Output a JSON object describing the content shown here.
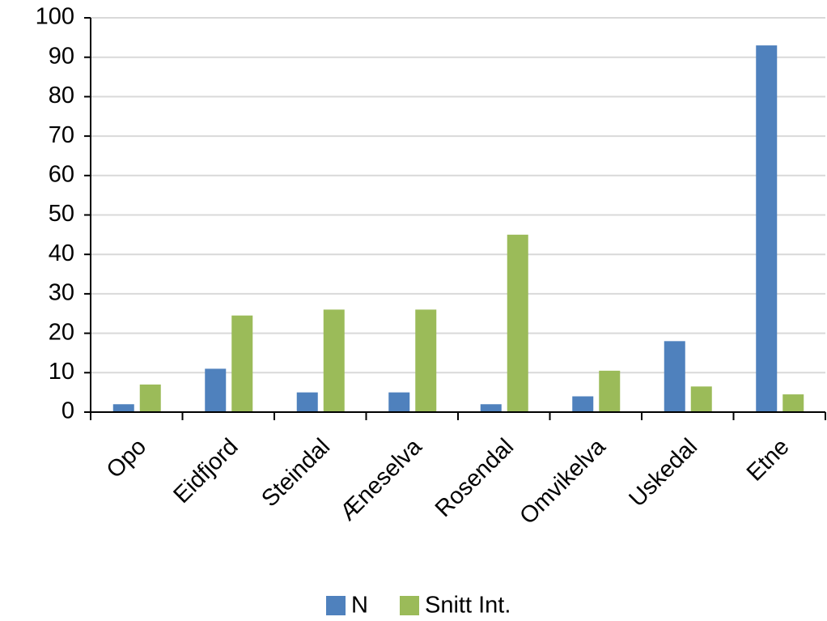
{
  "chart_data": {
    "type": "bar",
    "categories": [
      "Opo",
      "Eidfjord",
      "Steindal",
      "Æneselva",
      "Rosendal",
      "Omvikelva",
      "Uskedal",
      "Etne"
    ],
    "series": [
      {
        "name": "N",
        "color": "#4f81bd",
        "values": [
          2,
          11,
          5,
          5,
          2,
          4,
          18,
          93
        ]
      },
      {
        "name": "Snitt Int.",
        "color": "#9bbb59",
        "values": [
          7,
          24.5,
          26,
          26,
          45,
          10.5,
          6.5,
          4.5
        ]
      }
    ],
    "ylim": [
      0,
      100
    ],
    "yticks": [
      0,
      10,
      20,
      30,
      40,
      50,
      60,
      70,
      80,
      90,
      100
    ],
    "grid": true,
    "legend": "bottom"
  }
}
